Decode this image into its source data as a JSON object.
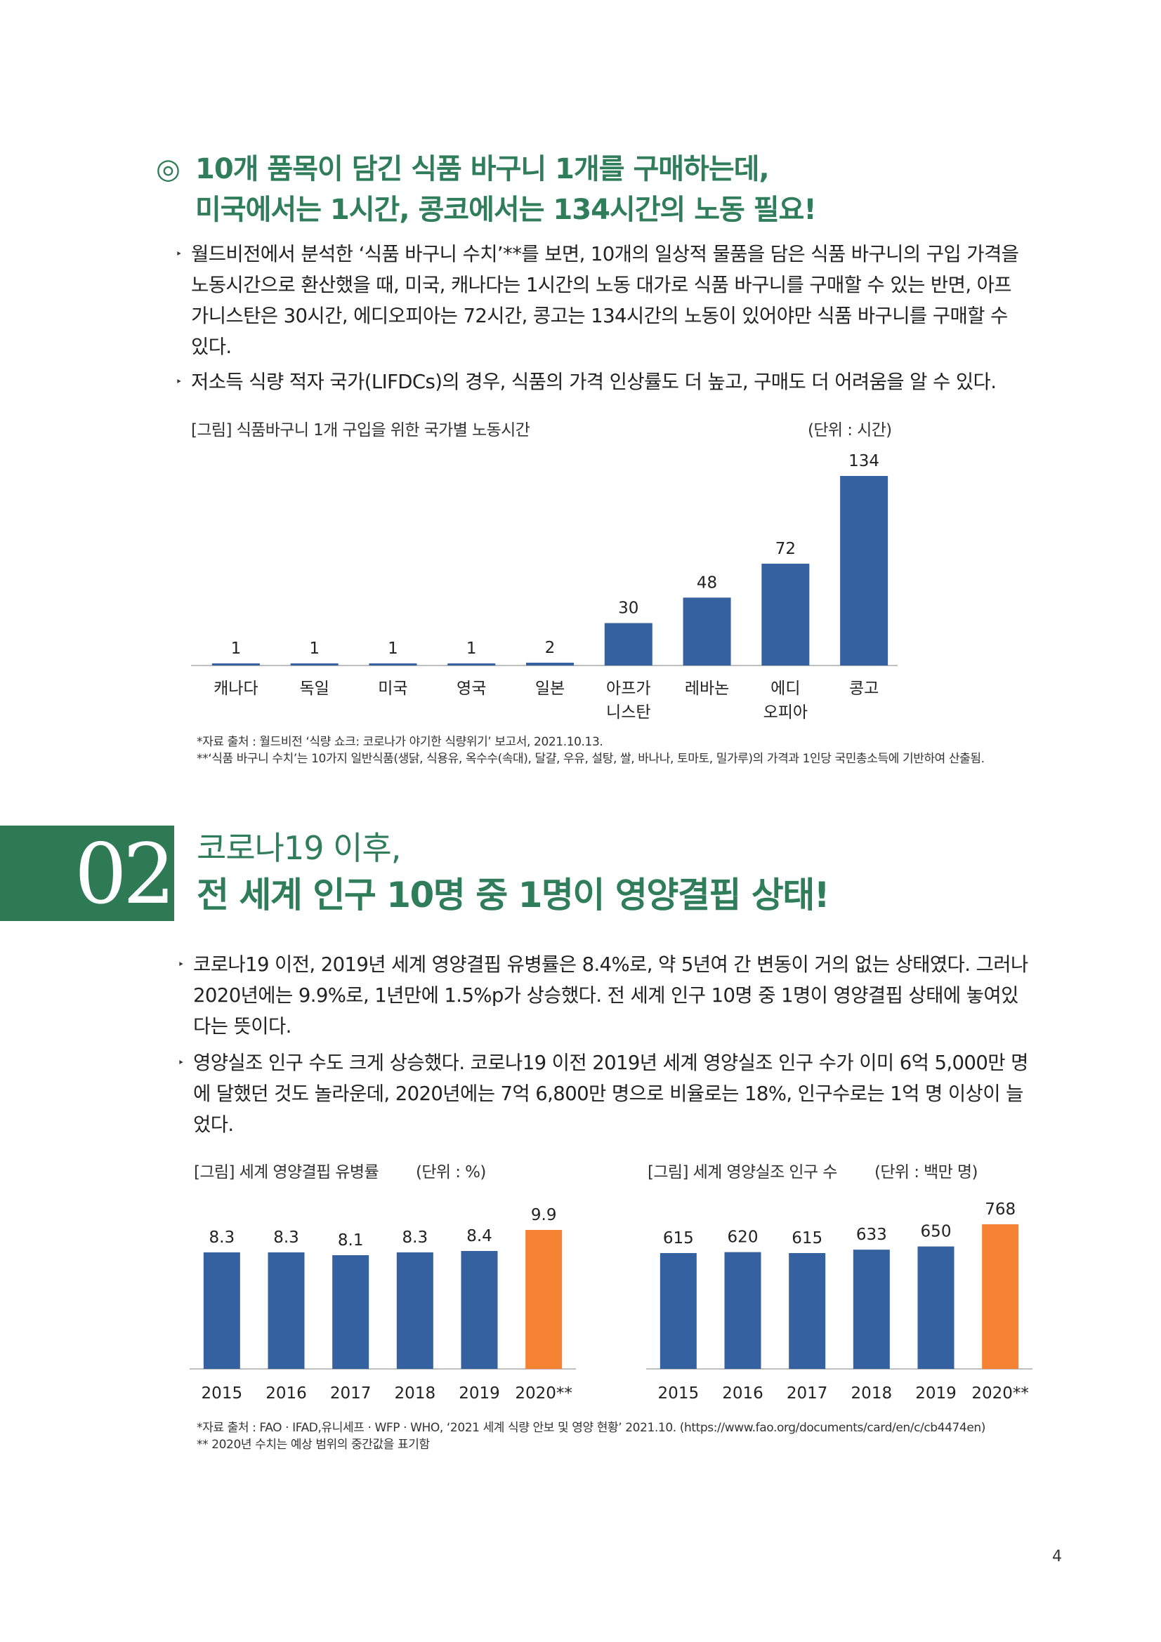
{
  "section1": {
    "heading_symbol": "◎",
    "heading_line1": "10개 품목이 담긴 식품 바구니 1개를 구매하는데,",
    "heading_line2": "미국에서는 1시간, 콩코에서는 134시간의 노동 필요!",
    "bullets": [
      {
        "lines": [
          "월드비전에서 분석한 ‘식품 바구니 수치’**를 보면, 10개의 일상적 물품을 담은 식품 바구니의 구입 가격을",
          "노동시간으로 환산했을 때, 미국, 캐나다는 1시간의 노동 대가로 식품 바구니를 구매할 수 있는 반면, 아프",
          "가니스탄은 30시간, 에디오피아는 72시간, 콩고는 134시간의 노동이 있어야만 식품 바구니를 구매할 수",
          "있다."
        ]
      },
      {
        "lines": [
          "저소득 식량 적자 국가(LIFDCs)의 경우, 식품의 가격 인상률도 더 높고, 구매도 더 어려움을 알 수 있다."
        ]
      }
    ],
    "figure_caption": "[그림] 식품바구니 1개 구입을 위한 국가별 노동시간",
    "figure_unit": "(단위 : 시간)",
    "notes": [
      "*자료 출처 : 월드비전 ‘식량 쇼크: 코로나가 야기한 식량위기’ 보고서, 2021.10.13.",
      "**‘식품 바구니 수치’는 10가지 일반식품(생닭, 식용유, 옥수수(속대), 달걀, 우유, 설탕, 쌀, 바나나, 토마토, 밀가루)의 가격과 1인당 국민총소득에 기반하여 산출됨."
    ]
  },
  "section2": {
    "number": "02",
    "subtitle": "코로나19 이후,",
    "title": "전 세계 인구 10명 중 1명이 영양결핍 상태!",
    "bullets": [
      {
        "lines": [
          "코로나19 이전, 2019년 세계 영양결핍 유병률은 8.4%로, 약 5년여 간 변동이 거의 없는 상태였다. 그러나",
          "2020년에는 9.9%로, 1년만에 1.5%p가 상승했다. 전 세계 인구 10명 중 1명이 영양결핍 상태에 놓여있",
          "다는 뜻이다."
        ]
      },
      {
        "lines": [
          "영양실조 인구 수도 크게 상승했다. 코로나19 이전 2019년 세계 영양실조 인구 수가 이미 6억 5,000만 명",
          "에 달했던 것도 놀라운데, 2020년에는 7억 6,800만 명으로 비율로는 18%, 인구수로는 1억 명 이상이 늘",
          "었다."
        ]
      }
    ],
    "figure_left_caption": "[그림] 세계 영양결핍 유병률",
    "figure_left_unit": "(단위 : %)",
    "figure_right_caption": "[그림] 세계 영양실조 인구 수",
    "figure_right_unit": "(단위 : 백만 명)",
    "notes": [
      "*자료 출처 : FAO · IFAD,유니세프 · WFP · WHO, ‘2021 세계 식량 안보 및 영양 현황’ 2021.10. (https://www.fao.org/documents/card/en/c/cb4474en)",
      "** 2020년 수치는 예상 범위의 중간값을 표기함"
    ]
  },
  "page_number": "4",
  "colors": {
    "green": "#2f7d5a",
    "bar_blue": "#3561a1",
    "bar_orange": "#f58233"
  },
  "chart_data": [
    {
      "type": "bar",
      "title": "[그림] 식품바구니 1개 구입을 위한 국가별 노동시간",
      "unit": "(단위 : 시간)",
      "categories": [
        [
          "캐나다"
        ],
        [
          "독일"
        ],
        [
          "미국"
        ],
        [
          "영국"
        ],
        [
          "일본"
        ],
        [
          "아프가",
          "니스탄"
        ],
        [
          "레바논"
        ],
        [
          "에디",
          "오피아"
        ],
        [
          "콩고"
        ]
      ],
      "values": [
        1,
        1,
        1,
        1,
        2,
        30,
        48,
        72,
        134
      ],
      "ylim": [
        0,
        134
      ],
      "grid": false
    },
    {
      "type": "bar",
      "title": "[그림] 세계 영양결핍 유병률",
      "unit": "(단위 : %)",
      "categories": [
        "2015",
        "2016",
        "2017",
        "2018",
        "2019",
        "2020**"
      ],
      "values": [
        8.3,
        8.3,
        8.1,
        8.3,
        8.4,
        9.9
      ],
      "highlight_index": 5,
      "grid": false
    },
    {
      "type": "bar",
      "title": "[그림] 세계 영양실조 인구 수",
      "unit": "(단위 : 백만 명)",
      "categories": [
        "2015",
        "2016",
        "2017",
        "2018",
        "2019",
        "2020**"
      ],
      "values": [
        615,
        620,
        615,
        633,
        650,
        768
      ],
      "highlight_index": 5,
      "grid": false
    }
  ]
}
